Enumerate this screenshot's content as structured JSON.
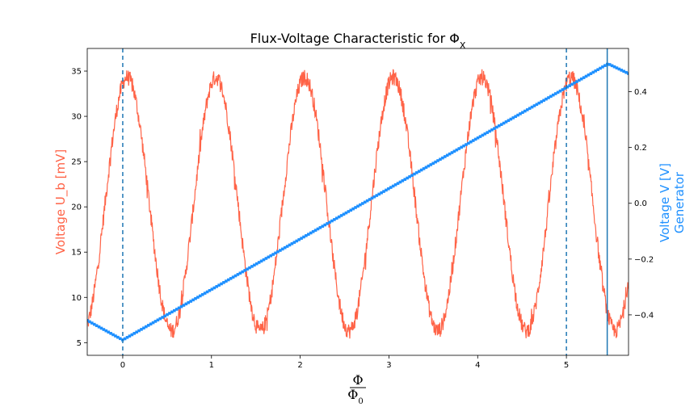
{
  "chart_data": {
    "type": "line",
    "title": "Flux-Voltage Characteristic for Φ",
    "title_subscript": "X",
    "xlabel_numerator": "Φ",
    "xlabel_denominator": "Φ",
    "xlabel_denominator_subscript": "0",
    "ylabel_left": "Voltage U_b [mV]",
    "ylabel_right_line1": "Voltage V [V]",
    "ylabel_right_line2": "Generator",
    "xlim": [
      -0.4,
      5.7
    ],
    "ylim_left": [
      3.6,
      37.5
    ],
    "ylim_right": [
      -0.545,
      0.555
    ],
    "x_ticks": [
      0,
      1,
      2,
      3,
      4,
      5
    ],
    "x_tick_labels": [
      "0",
      "1",
      "2",
      "3",
      "4",
      "5"
    ],
    "y_left_ticks": [
      5,
      10,
      15,
      20,
      25,
      30,
      35
    ],
    "y_left_tick_labels": [
      "5",
      "10",
      "15",
      "20",
      "25",
      "30",
      "35"
    ],
    "y_right_ticks": [
      -0.4,
      -0.2,
      0.0,
      0.2,
      0.4
    ],
    "y_right_tick_labels": [
      "−0.4",
      "−0.2",
      "0.0",
      "0.2",
      "0.4"
    ],
    "grid": false,
    "series": [
      {
        "axis": "left",
        "color": "#ff6347",
        "style": "noisy-sine",
        "period": 1.0,
        "min": 6.3,
        "max": 34.3,
        "peak_at": 0.05,
        "x_start": -0.4,
        "x_end": 5.7
      },
      {
        "axis": "right",
        "color": "#1e90ff",
        "style": "markers-line",
        "points": [
          [
            -0.4,
            -0.42
          ],
          [
            0.0,
            -0.49
          ],
          [
            5.47,
            0.5
          ],
          [
            5.7,
            0.465
          ]
        ]
      }
    ],
    "vlines": [
      {
        "x": 0.0,
        "style": "dashed",
        "color": "#1f77b4"
      },
      {
        "x": 5.0,
        "style": "dashed",
        "color": "#1f77b4"
      },
      {
        "x": 5.46,
        "style": "solid",
        "color": "#1f77b4"
      }
    ]
  }
}
